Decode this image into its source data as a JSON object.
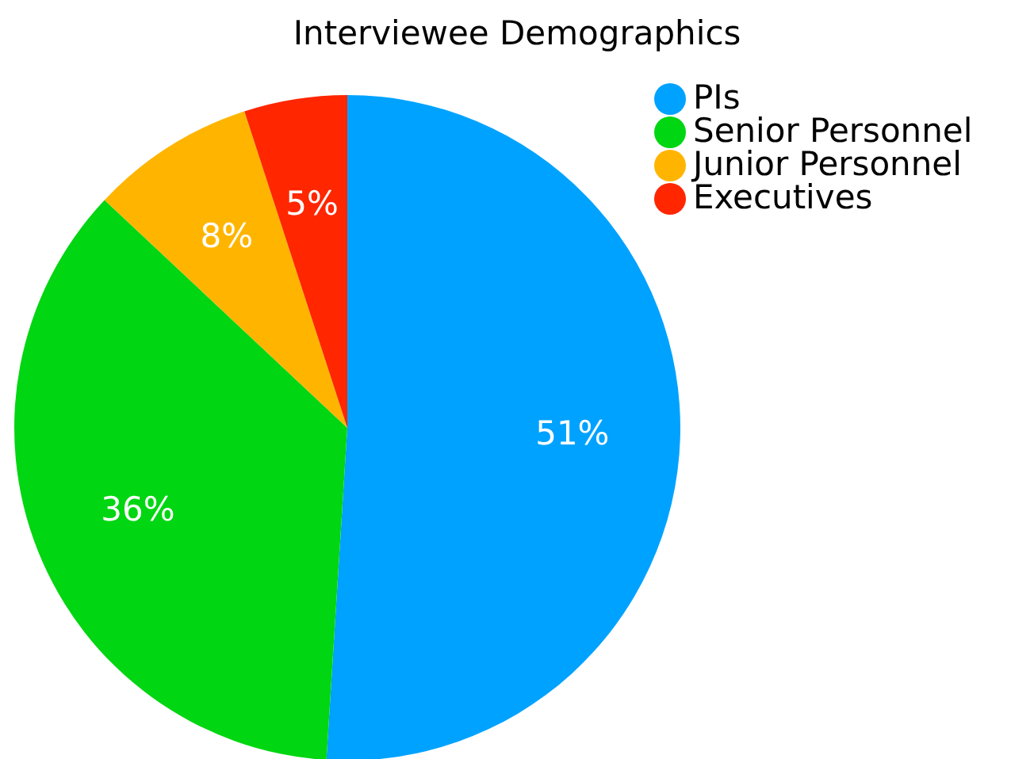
{
  "chart_data": {
    "type": "pie",
    "title": "Interviewee Demographics",
    "categories": [
      "PIs",
      "Senior Personnel",
      "Junior Personnel",
      "Executives"
    ],
    "values": [
      51,
      36,
      8,
      5
    ],
    "colors": [
      "#00a2ff",
      "#00d611",
      "#ffb500",
      "#ff2600"
    ],
    "value_labels": [
      "51%",
      "36%",
      "8%",
      "5%"
    ],
    "legend": "top right"
  }
}
